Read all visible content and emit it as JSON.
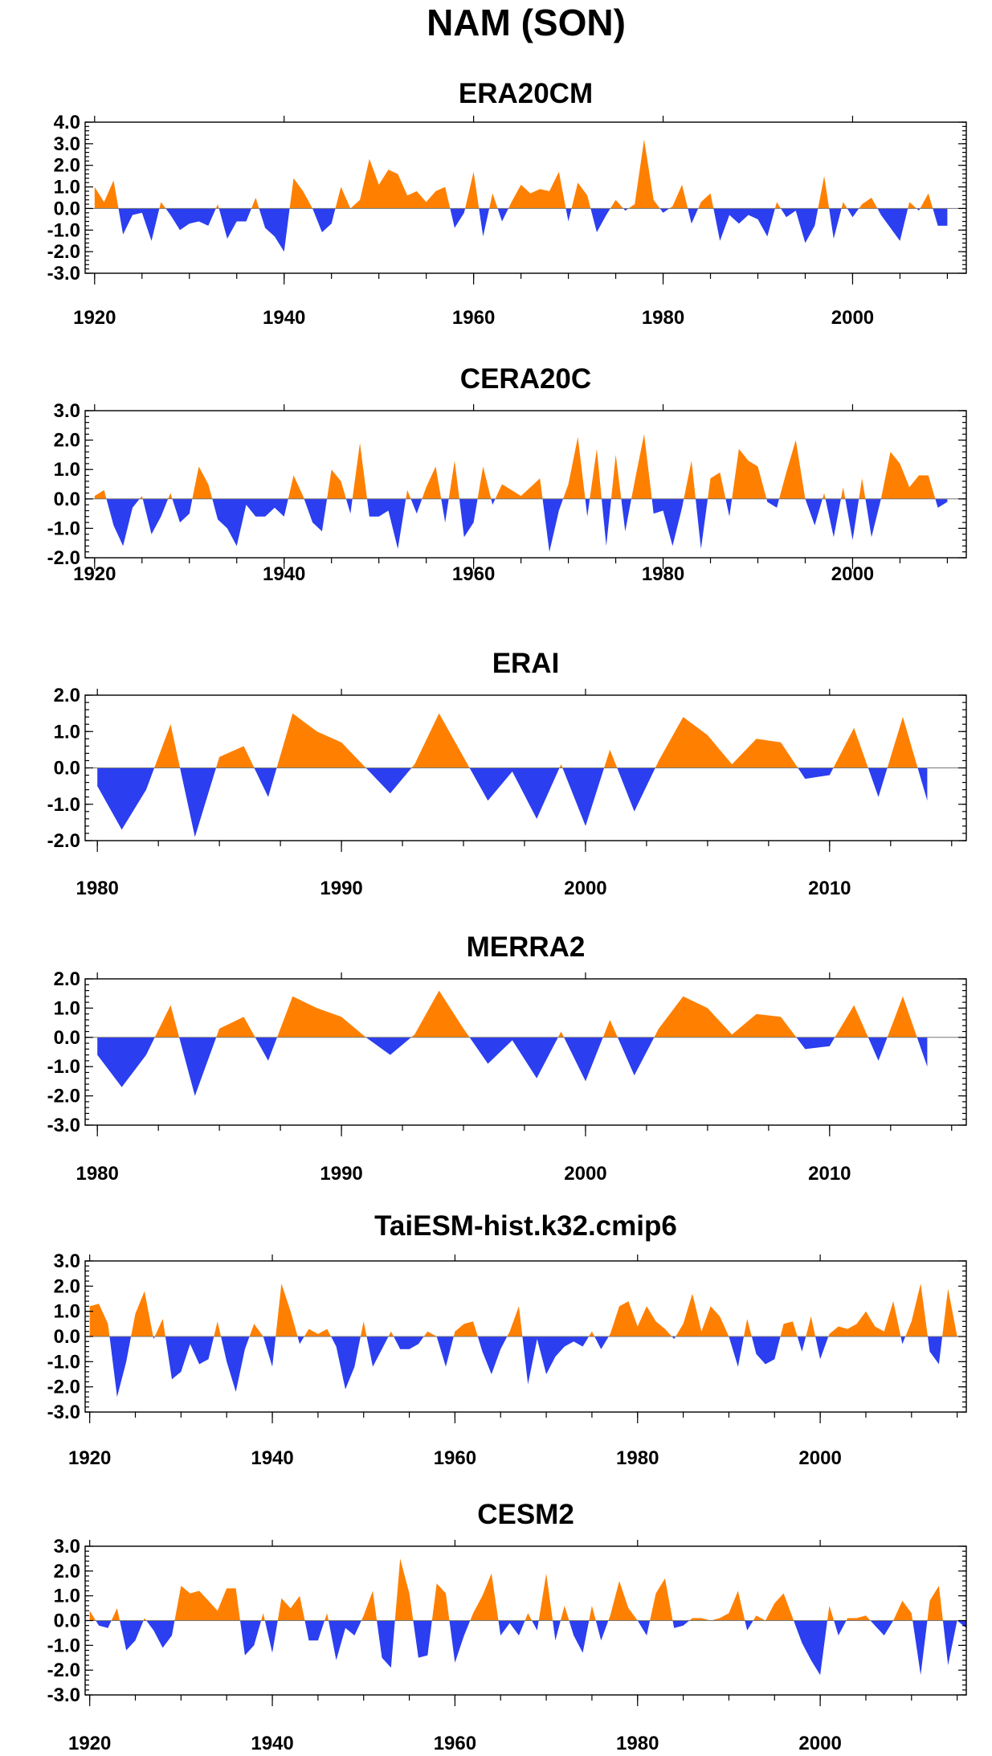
{
  "figure_title": "NAM (SON)",
  "colors": {
    "positive": "#ff8000",
    "negative": "#2b3ef0"
  },
  "chart_data": [
    {
      "type": "area",
      "title": "ERA20CM",
      "xlim": [
        1919,
        2012
      ],
      "ylim": [
        -3,
        4
      ],
      "xticks": [
        1920,
        1940,
        1960,
        1980,
        2000
      ],
      "yticks": [
        4,
        3,
        2,
        1,
        0,
        -1,
        -2,
        -3
      ],
      "ytick_labels": [
        "4.0",
        "3.0",
        "2.0",
        "1.0",
        "0.0",
        "-1.0",
        "-2.0",
        "-3.0"
      ],
      "start_year": 1920,
      "values": [
        1.0,
        0.3,
        1.3,
        -1.2,
        -0.3,
        -0.2,
        -1.5,
        0.3,
        -0.3,
        -1.0,
        -0.7,
        -0.6,
        -0.8,
        0.2,
        -1.4,
        -0.6,
        -0.6,
        0.5,
        -0.9,
        -1.3,
        -2.0,
        1.4,
        0.8,
        0.0,
        -1.1,
        -0.7,
        1.0,
        0.0,
        0.4,
        2.3,
        1.1,
        1.8,
        1.6,
        0.6,
        0.8,
        0.3,
        0.8,
        1.0,
        -0.9,
        -0.2,
        1.7,
        -1.3,
        0.7,
        -0.6,
        0.3,
        1.1,
        0.7,
        0.9,
        0.8,
        1.7,
        -0.6,
        1.2,
        0.6,
        -1.1,
        -0.3,
        0.4,
        -0.1,
        0.2,
        3.2,
        0.4,
        -0.2,
        0.1,
        1.1,
        -0.7,
        0.3,
        0.7,
        -1.5,
        -0.3,
        -0.7,
        -0.3,
        -0.5,
        -1.3,
        0.3,
        -0.4,
        -0.1,
        -1.6,
        -0.8,
        1.5,
        -1.4,
        0.3,
        -0.4,
        0.2,
        0.5,
        -0.3,
        -0.9,
        -1.5,
        0.3,
        -0.1,
        0.7,
        -0.8,
        -0.8
      ]
    },
    {
      "type": "area",
      "title": "CERA20C",
      "xlim": [
        1919,
        2012
      ],
      "ylim": [
        -2,
        3
      ],
      "xticks": [
        1920,
        1940,
        1960,
        1980,
        2000
      ],
      "yticks": [
        3,
        2,
        1,
        0,
        -1,
        -2
      ],
      "ytick_labels": [
        "3.0",
        "2.0",
        "1.0",
        "0.0",
        "-1.0",
        "-2.0"
      ],
      "start_year": 1920,
      "values": [
        0.1,
        0.3,
        -0.9,
        -1.6,
        -0.3,
        0.1,
        -1.2,
        -0.6,
        0.2,
        -0.8,
        -0.5,
        1.1,
        0.5,
        -0.7,
        -1.0,
        -1.6,
        -0.2,
        -0.6,
        -0.6,
        -0.3,
        -0.6,
        0.8,
        0.1,
        -0.8,
        -1.1,
        1.0,
        0.6,
        -0.5,
        1.9,
        -0.6,
        -0.6,
        -0.4,
        -1.7,
        0.3,
        -0.5,
        0.4,
        1.1,
        -0.8,
        1.3,
        -1.3,
        -0.8,
        1.1,
        -0.2,
        0.5,
        0.3,
        0.1,
        0.4,
        0.7,
        -1.8,
        -0.4,
        0.5,
        2.1,
        -0.6,
        1.7,
        -1.6,
        1.5,
        -1.1,
        0.6,
        2.2,
        -0.5,
        -0.4,
        -1.6,
        -0.3,
        1.3,
        -1.7,
        0.7,
        0.9,
        -0.6,
        1.7,
        1.3,
        1.1,
        -0.1,
        -0.3,
        0.9,
        2.0,
        0.0,
        -0.9,
        0.2,
        -1.3,
        0.4,
        -1.4,
        0.7,
        -1.3,
        0.0,
        1.6,
        1.2,
        0.4,
        0.8,
        0.8,
        -0.3,
        -0.1
      ]
    },
    {
      "type": "area",
      "title": "ERAI",
      "xlim": [
        1979.5,
        2015.6
      ],
      "ylim": [
        -2,
        2
      ],
      "xticks": [
        1980,
        1990,
        2000,
        2010
      ],
      "yticks": [
        2,
        1,
        0,
        -1,
        -2
      ],
      "ytick_labels": [
        "2.0",
        "1.0",
        "0.0",
        "-1.0",
        "-2.0"
      ],
      "start_year": 1980,
      "values": [
        -0.5,
        -1.7,
        -0.6,
        1.2,
        -1.9,
        0.3,
        0.6,
        -0.8,
        1.5,
        1.0,
        0.7,
        0.0,
        -0.7,
        0.1,
        1.5,
        0.3,
        -0.9,
        -0.1,
        -1.4,
        0.1,
        -1.6,
        0.5,
        -1.2,
        0.2,
        1.4,
        0.9,
        0.1,
        0.8,
        0.7,
        -0.3,
        -0.2,
        1.1,
        -0.8,
        1.4,
        -0.9
      ]
    },
    {
      "type": "area",
      "title": "MERRA2",
      "xlim": [
        1979.5,
        2015.6
      ],
      "ylim": [
        -3,
        2
      ],
      "xticks": [
        1980,
        1990,
        2000,
        2010
      ],
      "yticks": [
        2,
        1,
        0,
        -1,
        -2,
        -3
      ],
      "ytick_labels": [
        "2.0",
        "1.0",
        "0.0",
        "-1.0",
        "-2.0",
        "-3.0"
      ],
      "start_year": 1980,
      "values": [
        -0.6,
        -1.7,
        -0.6,
        1.1,
        -2.0,
        0.3,
        0.7,
        -0.8,
        1.4,
        1.0,
        0.7,
        0.0,
        -0.6,
        0.1,
        1.6,
        0.3,
        -0.9,
        -0.1,
        -1.4,
        0.2,
        -1.5,
        0.6,
        -1.3,
        0.3,
        1.4,
        1.0,
        0.1,
        0.8,
        0.7,
        -0.4,
        -0.3,
        1.1,
        -0.8,
        1.4,
        -1.0
      ]
    },
    {
      "type": "area",
      "title": "TaiESM-hist.k32.cmip6",
      "xlim": [
        1919.5,
        2016
      ],
      "ylim": [
        -3,
        3
      ],
      "xticks": [
        1920,
        1940,
        1960,
        1980,
        2000
      ],
      "yticks": [
        3,
        2,
        1,
        0,
        -1,
        -2,
        -3
      ],
      "ytick_labels": [
        "3.0",
        "2.0",
        "1.0",
        "0.0",
        "-1.0",
        "-2.0",
        "-3.0"
      ],
      "start_year": 1920,
      "values": [
        1.2,
        1.3,
        0.5,
        -2.4,
        -1.0,
        0.9,
        1.8,
        -0.1,
        0.7,
        -1.7,
        -1.4,
        -0.3,
        -1.1,
        -0.9,
        0.6,
        -1.0,
        -2.2,
        -0.5,
        0.5,
        0.0,
        -1.2,
        2.1,
        1.0,
        -0.3,
        0.3,
        0.1,
        0.3,
        -0.4,
        -2.1,
        -1.2,
        0.6,
        -1.2,
        -0.5,
        0.2,
        -0.5,
        -0.5,
        -0.3,
        0.2,
        0.0,
        -1.2,
        0.2,
        0.5,
        0.6,
        -0.6,
        -1.5,
        -0.5,
        0.2,
        1.2,
        -1.9,
        -0.1,
        -1.5,
        -0.8,
        -0.4,
        -0.2,
        -0.4,
        0.2,
        -0.5,
        0.1,
        1.2,
        1.4,
        0.4,
        1.2,
        0.6,
        0.3,
        -0.1,
        0.5,
        1.7,
        0.2,
        1.2,
        0.8,
        0.0,
        -1.2,
        0.7,
        -0.7,
        -1.1,
        -0.9,
        0.5,
        0.6,
        -0.6,
        0.8,
        -0.9,
        0.1,
        0.4,
        0.3,
        0.5,
        1.0,
        0.4,
        0.2,
        1.4,
        -0.3,
        0.6,
        2.1,
        -0.6,
        -1.1,
        1.9,
        0.0
      ]
    },
    {
      "type": "area",
      "title": "CESM2",
      "xlim": [
        1919.5,
        2016
      ],
      "ylim": [
        -3,
        3
      ],
      "xticks": [
        1920,
        1940,
        1960,
        1980,
        2000
      ],
      "yticks": [
        3,
        2,
        1,
        0,
        -1,
        -2,
        -3
      ],
      "ytick_labels": [
        "3.0",
        "2.0",
        "1.0",
        "0.0",
        "-1.0",
        "-2.0",
        "-3.0"
      ],
      "start_year": 1920,
      "values": [
        0.4,
        -0.2,
        -0.3,
        0.5,
        -1.2,
        -0.8,
        0.1,
        -0.4,
        -1.1,
        -0.6,
        1.4,
        1.1,
        1.2,
        0.8,
        0.4,
        1.3,
        1.3,
        -1.4,
        -1.0,
        0.3,
        -1.3,
        0.9,
        0.5,
        1.0,
        -0.8,
        -0.8,
        0.3,
        -1.6,
        -0.3,
        -0.6,
        0.2,
        1.2,
        -1.5,
        -1.9,
        2.5,
        1.1,
        -1.5,
        -1.4,
        1.5,
        1.1,
        -1.7,
        -0.6,
        0.3,
        1.0,
        1.9,
        -0.6,
        -0.1,
        -0.6,
        0.3,
        -0.4,
        1.9,
        -0.8,
        0.6,
        -0.6,
        -1.3,
        0.6,
        -0.8,
        0.2,
        1.6,
        0.5,
        0.0,
        -0.6,
        1.1,
        1.7,
        -0.3,
        -0.2,
        0.1,
        0.1,
        0.0,
        0.1,
        0.3,
        1.2,
        -0.4,
        0.2,
        0.0,
        0.7,
        1.1,
        0.1,
        -0.9,
        -1.6,
        -2.2,
        0.6,
        -0.6,
        0.1,
        0.1,
        0.2,
        -0.2,
        -0.6,
        0.0,
        0.8,
        0.3,
        -2.2,
        0.8,
        1.4,
        -1.8,
        0.0,
        -0.3
      ]
    }
  ]
}
